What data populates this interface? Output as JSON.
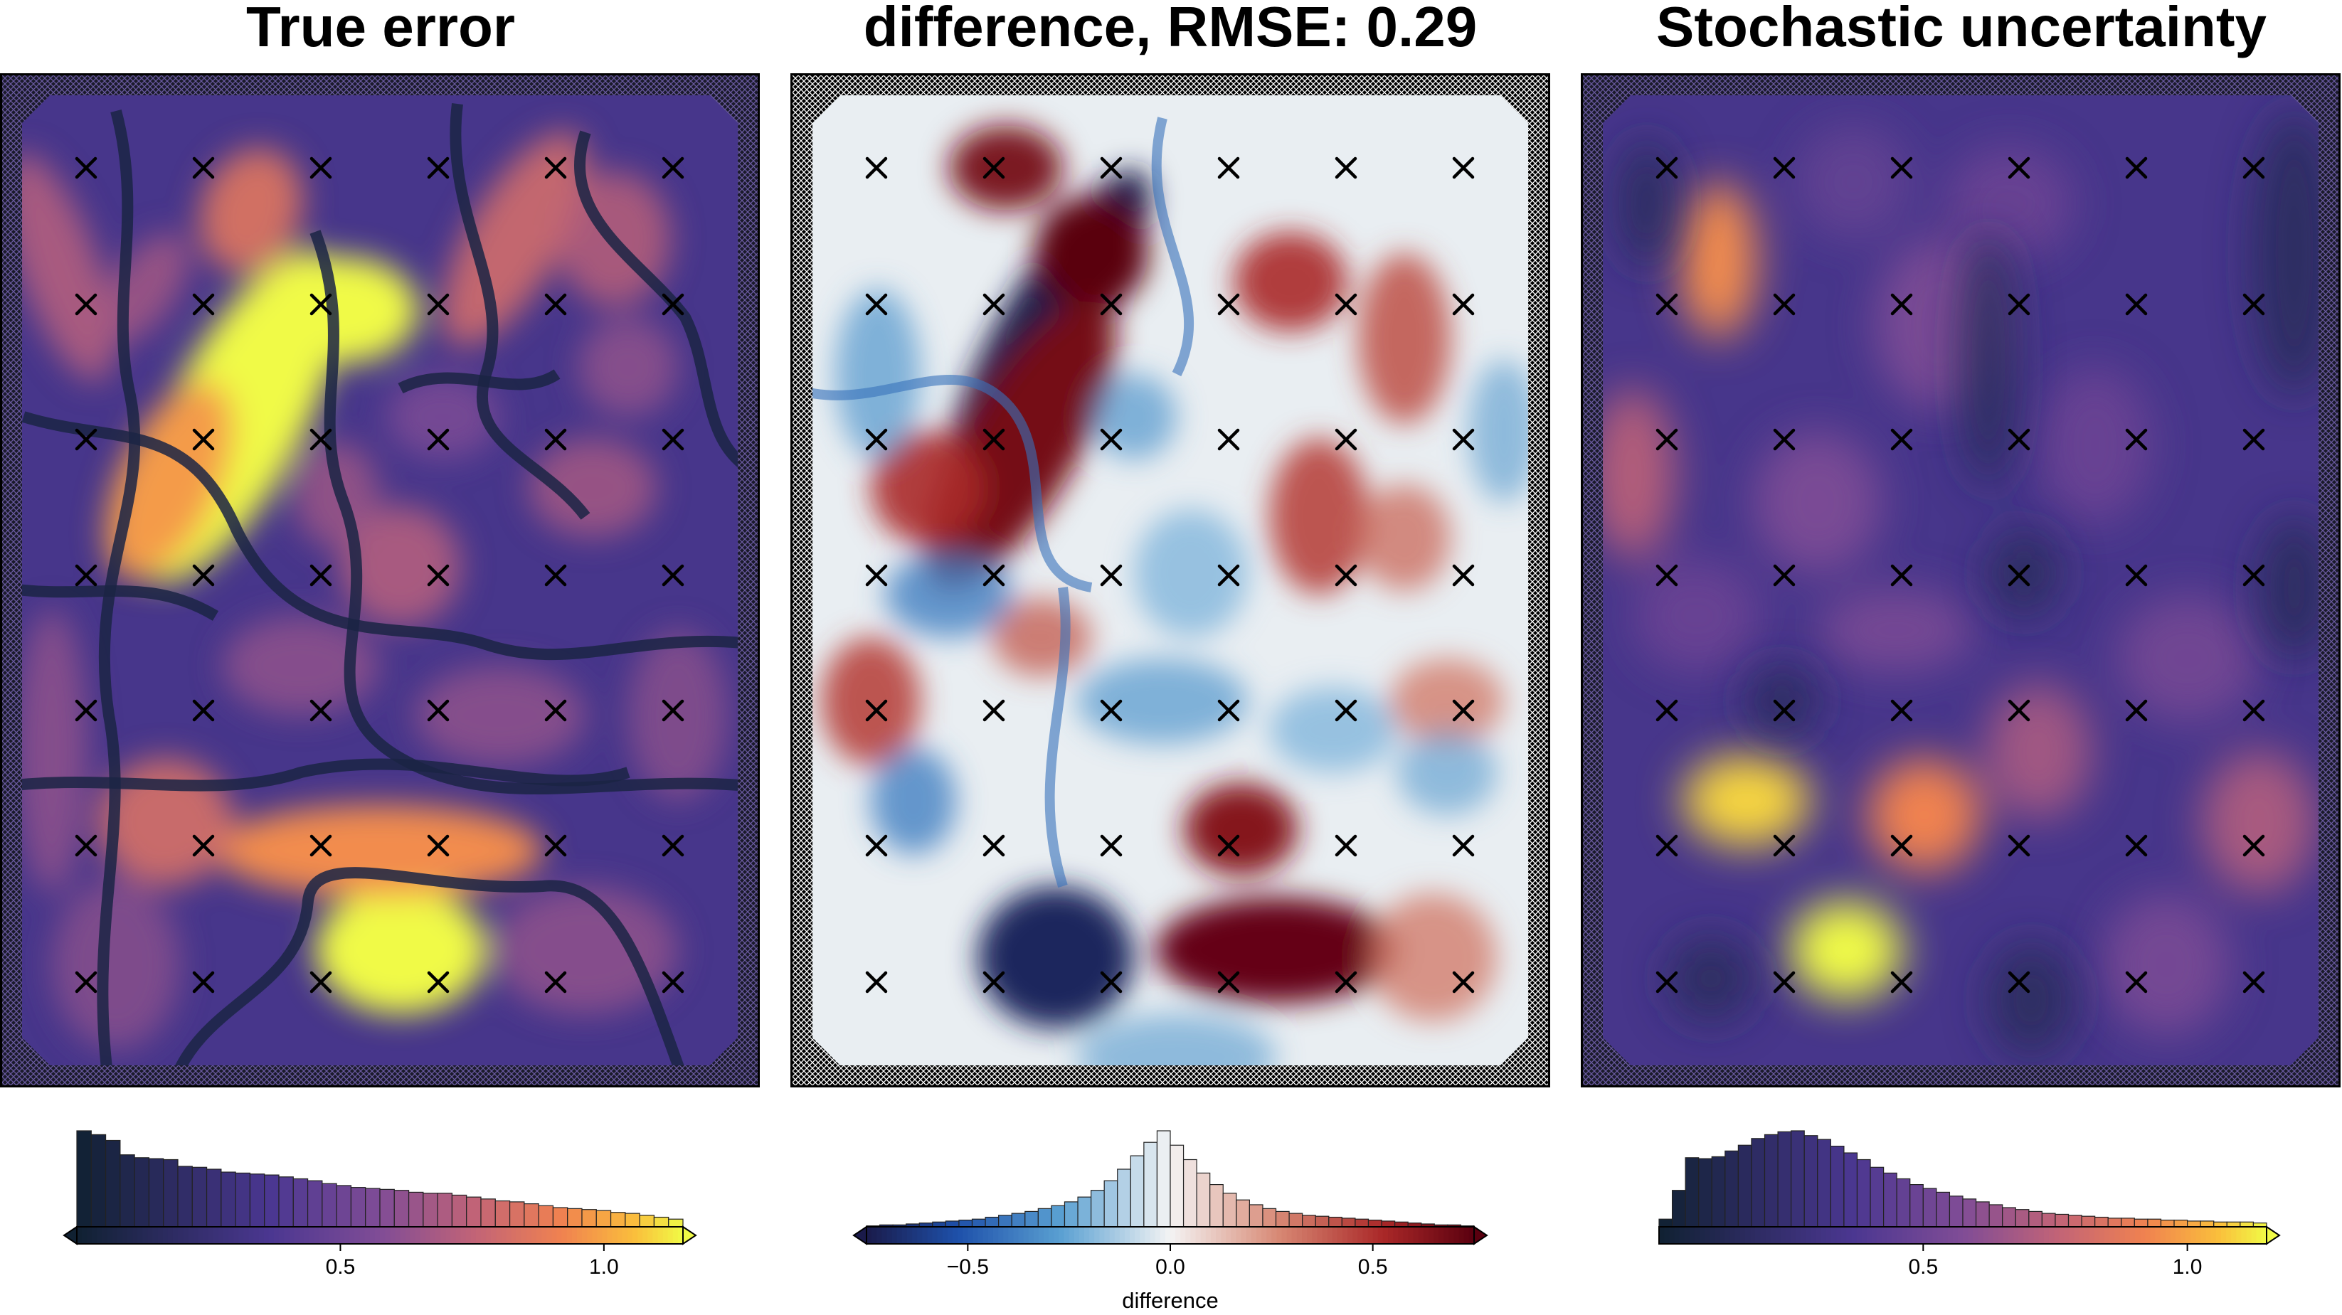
{
  "panels": [
    {
      "title": "True error",
      "colormap": "plasma-like",
      "colorbar": {
        "ticks": [
          {
            "value": 0.5,
            "label": "0.5"
          },
          {
            "value": 1.0,
            "label": "1.0"
          }
        ],
        "range": [
          0,
          1.15
        ],
        "label": ""
      }
    },
    {
      "title": "difference, RMSE: 0.29",
      "colormap": "diverging blue-white-red",
      "colorbar": {
        "ticks": [
          {
            "value": -0.5,
            "label": "−0.5"
          },
          {
            "value": 0.0,
            "label": "0.0"
          },
          {
            "value": 0.5,
            "label": "0.5"
          }
        ],
        "range": [
          -0.75,
          0.75
        ],
        "label": "difference"
      }
    },
    {
      "title": "Stochastic uncertainty",
      "colormap": "plasma-like",
      "colorbar": {
        "ticks": [
          {
            "value": 0.5,
            "label": "0.5"
          },
          {
            "value": 1.0,
            "label": "1.0"
          }
        ],
        "range": [
          0,
          1.15
        ],
        "label": ""
      }
    }
  ],
  "chart_data": [
    {
      "type": "heatmap",
      "title": "True error",
      "grid_points": {
        "columns": 6,
        "rows": 7,
        "marker": "x"
      },
      "histogram": {
        "type": "bar",
        "bins": 42,
        "range": [
          0,
          1.15
        ],
        "relative_heights": [
          1.0,
          0.96,
          0.9,
          0.75,
          0.72,
          0.71,
          0.7,
          0.63,
          0.62,
          0.6,
          0.57,
          0.56,
          0.55,
          0.54,
          0.52,
          0.5,
          0.48,
          0.45,
          0.43,
          0.41,
          0.4,
          0.39,
          0.38,
          0.36,
          0.35,
          0.35,
          0.33,
          0.31,
          0.29,
          0.27,
          0.26,
          0.24,
          0.22,
          0.2,
          0.19,
          0.18,
          0.17,
          0.15,
          0.14,
          0.12,
          0.1,
          0.08
        ]
      }
    },
    {
      "type": "heatmap",
      "title": "difference, RMSE: 0.29",
      "rmse": 0.29,
      "grid_points": {
        "columns": 6,
        "rows": 7,
        "marker": "x"
      },
      "histogram": {
        "type": "bar",
        "bins": 46,
        "range": [
          -0.75,
          0.75
        ],
        "relative_heights": [
          0.01,
          0.02,
          0.02,
          0.03,
          0.04,
          0.05,
          0.06,
          0.07,
          0.08,
          0.1,
          0.12,
          0.14,
          0.16,
          0.19,
          0.22,
          0.26,
          0.31,
          0.38,
          0.48,
          0.6,
          0.74,
          0.88,
          1.0,
          0.85,
          0.7,
          0.56,
          0.44,
          0.35,
          0.28,
          0.23,
          0.19,
          0.16,
          0.14,
          0.12,
          0.11,
          0.1,
          0.09,
          0.08,
          0.07,
          0.06,
          0.05,
          0.04,
          0.03,
          0.02,
          0.02,
          0.01
        ]
      }
    },
    {
      "type": "heatmap",
      "title": "Stochastic uncertainty",
      "grid_points": {
        "columns": 6,
        "rows": 7,
        "marker": "x"
      },
      "histogram": {
        "type": "bar",
        "bins": 46,
        "range": [
          0,
          1.15
        ],
        "relative_heights": [
          0.08,
          0.38,
          0.72,
          0.71,
          0.73,
          0.79,
          0.85,
          0.92,
          0.96,
          0.99,
          1.0,
          0.95,
          0.91,
          0.84,
          0.77,
          0.7,
          0.62,
          0.56,
          0.5,
          0.44,
          0.4,
          0.36,
          0.32,
          0.29,
          0.26,
          0.23,
          0.2,
          0.18,
          0.16,
          0.14,
          0.13,
          0.12,
          0.11,
          0.1,
          0.09,
          0.09,
          0.08,
          0.08,
          0.07,
          0.07,
          0.06,
          0.06,
          0.05,
          0.05,
          0.05,
          0.04
        ]
      }
    }
  ]
}
